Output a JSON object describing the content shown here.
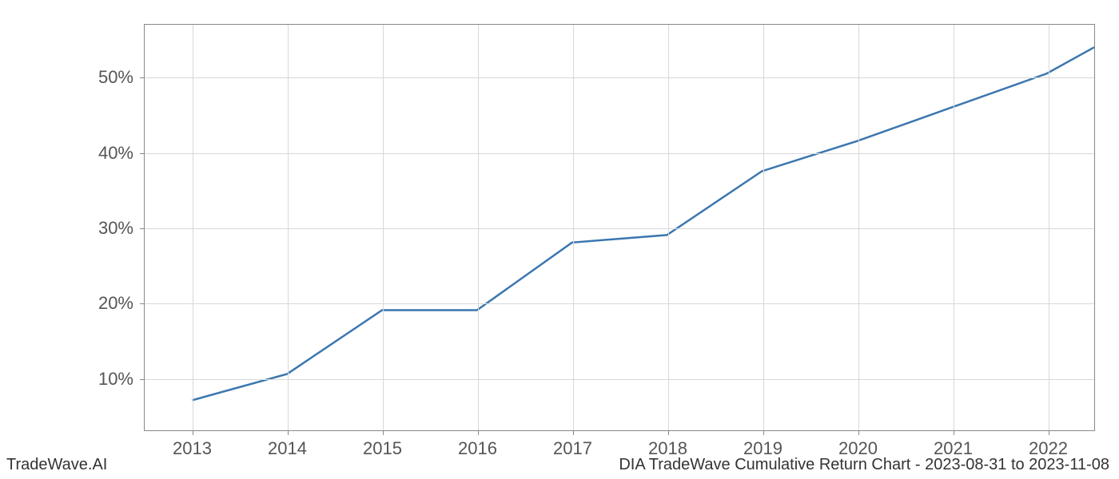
{
  "chart": {
    "type": "line",
    "x_values": [
      2013,
      2014,
      2015,
      2016,
      2017,
      2018,
      2019,
      2020,
      2021,
      2022,
      2022.5
    ],
    "y_values": [
      7,
      10.5,
      19,
      19,
      28,
      29,
      37.5,
      41.5,
      46,
      50.5,
      54
    ],
    "line_color": "#3b76af",
    "line_width": 2.5,
    "xlim": [
      2012.5,
      2022.5
    ],
    "ylim": [
      3,
      57
    ],
    "xticks": [
      2013,
      2014,
      2015,
      2016,
      2017,
      2018,
      2019,
      2020,
      2021,
      2022
    ],
    "xtick_labels": [
      "2013",
      "2014",
      "2015",
      "2016",
      "2017",
      "2018",
      "2019",
      "2020",
      "2021",
      "2022"
    ],
    "yticks": [
      10,
      20,
      30,
      40,
      50
    ],
    "ytick_labels": [
      "10%",
      "20%",
      "30%",
      "40%",
      "50%"
    ],
    "tick_fontsize": 22,
    "tick_color": "#555555",
    "grid_color": "#d8d8d8",
    "border_color": "#888888",
    "background_color": "#ffffff"
  },
  "footer": {
    "left_text": "TradeWave.AI",
    "right_text": "DIA TradeWave Cumulative Return Chart - 2023-08-31 to 2023-11-08",
    "fontsize": 20,
    "color": "#333333"
  }
}
